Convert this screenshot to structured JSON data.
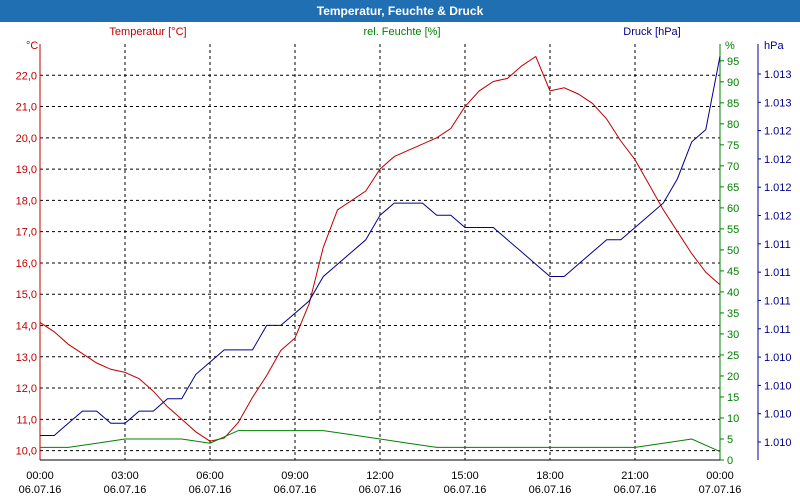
{
  "window": {
    "title": "Temperatur, Feuchte & Druck"
  },
  "colors": {
    "temperature": "#c00000",
    "humidity": "#008000",
    "pressure": "#00008b",
    "titlebar": "#1f6fb2"
  },
  "chart_data": {
    "type": "line",
    "title": "Temperatur, Feuchte & Druck",
    "x_ticks": [
      {
        "time": "00:00",
        "date": "06.07.16"
      },
      {
        "time": "03:00",
        "date": "06.07.16"
      },
      {
        "time": "06:00",
        "date": "06.07.16"
      },
      {
        "time": "09:00",
        "date": "06.07.16"
      },
      {
        "time": "12:00",
        "date": "06.07.16"
      },
      {
        "time": "15:00",
        "date": "06.07.16"
      },
      {
        "time": "18:00",
        "date": "06.07.16"
      },
      {
        "time": "21:00",
        "date": "06.07.16"
      },
      {
        "time": "00:00",
        "date": "07.07.16"
      }
    ],
    "xlim_hours": [
      0,
      24
    ],
    "axes": {
      "left": {
        "unit": "°C",
        "min": 9.7,
        "max": 23.0,
        "ticks": [
          "10,0",
          "11,0",
          "12,0",
          "13,0",
          "14,0",
          "15,0",
          "16,0",
          "17,0",
          "18,0",
          "19,0",
          "20,0",
          "21,0",
          "22,0"
        ]
      },
      "right1": {
        "unit": "%",
        "min": 0,
        "max": 99,
        "ticks": [
          "0",
          "5",
          "10",
          "15",
          "20",
          "25",
          "30",
          "35",
          "40",
          "45",
          "50",
          "55",
          "60",
          "65",
          "70",
          "75",
          "80",
          "85",
          "90",
          "95"
        ]
      },
      "right2": {
        "unit": "hPa",
        "ticks": [
          "1.010",
          "1.010",
          "1.010",
          "1.010",
          "1.011",
          "1.011",
          "1.011",
          "1.011",
          "1.012",
          "1.012",
          "1.012",
          "1.012",
          "1.013",
          "1.013"
        ]
      }
    },
    "series": [
      {
        "name": "Temperatur [°C]",
        "axis": "left",
        "x": [
          0,
          0.5,
          1,
          1.5,
          2,
          2.5,
          3,
          3.5,
          4,
          4.5,
          5,
          5.5,
          6,
          6.5,
          7,
          7.5,
          8,
          8.5,
          9,
          9.5,
          10,
          10.5,
          11,
          11.5,
          12,
          12.5,
          13,
          13.5,
          14,
          14.5,
          15,
          15.5,
          16,
          16.5,
          17,
          17.5,
          18,
          18.5,
          19,
          19.5,
          20,
          20.5,
          21,
          21.5,
          22,
          22.5,
          23,
          23.5,
          24
        ],
        "values": [
          14.1,
          13.8,
          13.4,
          13.1,
          12.8,
          12.6,
          12.5,
          12.3,
          11.9,
          11.4,
          11.0,
          10.6,
          10.3,
          10.4,
          10.9,
          11.7,
          12.4,
          13.2,
          13.6,
          14.7,
          16.5,
          17.7,
          18.0,
          18.3,
          19.0,
          19.4,
          19.6,
          19.8,
          20.0,
          20.3,
          21.0,
          21.5,
          21.8,
          21.9,
          22.3,
          22.6,
          21.5,
          21.6,
          21.4,
          21.1,
          20.6,
          19.9,
          19.3,
          18.5,
          17.7,
          17.0,
          16.3,
          15.7,
          15.3
        ]
      },
      {
        "name": "rel. Feuchte [%]",
        "axis": "right1",
        "x": [
          0,
          1,
          2,
          3,
          4,
          5,
          6,
          7,
          8,
          9,
          10,
          11,
          12,
          13,
          14,
          15,
          16,
          17,
          18,
          19,
          20,
          21,
          22,
          23,
          24
        ],
        "values": [
          3,
          3,
          4,
          5,
          5,
          5,
          4,
          7,
          7,
          7,
          7,
          6,
          5,
          4,
          3,
          3,
          3,
          3,
          3,
          3,
          3,
          3,
          4,
          5,
          2
        ]
      },
      {
        "name": "Druck [hPa]",
        "axis": "right2",
        "x": [
          0,
          0.5,
          1,
          1.5,
          2,
          2.5,
          3,
          3.5,
          4,
          4.5,
          5,
          5.5,
          6,
          6.5,
          7,
          7.5,
          8,
          8.5,
          9,
          9.5,
          10,
          10.5,
          11,
          11.5,
          12,
          12.5,
          13,
          13.5,
          14,
          14.5,
          15,
          15.5,
          16,
          16.5,
          17,
          17.5,
          18,
          18.5,
          19,
          19.5,
          20,
          20.5,
          21,
          21.5,
          22,
          22.5,
          23,
          23.5,
          24
        ],
        "values": [
          1.0099,
          1.0099,
          1.01,
          1.0101,
          1.0101,
          1.01,
          1.01,
          1.0101,
          1.0101,
          1.0102,
          1.0102,
          1.0104,
          1.0105,
          1.0106,
          1.0106,
          1.0106,
          1.0108,
          1.0108,
          1.0109,
          1.011,
          1.0112,
          1.0113,
          1.0114,
          1.0115,
          1.0117,
          1.0118,
          1.0118,
          1.0118,
          1.0117,
          1.0117,
          1.0116,
          1.0116,
          1.0116,
          1.0115,
          1.0114,
          1.0113,
          1.0112,
          1.0112,
          1.0113,
          1.0114,
          1.0115,
          1.0115,
          1.0116,
          1.0117,
          1.0118,
          1.012,
          1.0123,
          1.0124,
          1.013
        ]
      }
    ],
    "legend": [
      "Temperatur [°C]",
      "rel. Feuchte [%]",
      "Druck [hPa]"
    ]
  }
}
